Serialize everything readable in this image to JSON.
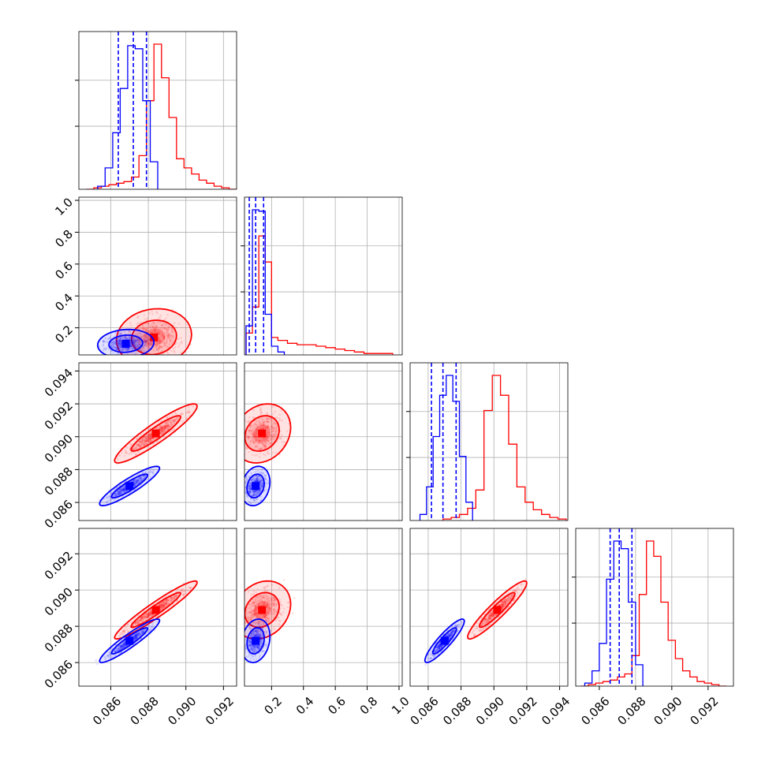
{
  "colors": {
    "blue": "#0000ff",
    "red": "#ff0000",
    "grid": "#b0b0b0",
    "frame": "#000000"
  },
  "chart_data": {
    "type": "corner",
    "grid": true,
    "series": [
      {
        "color": "blue"
      },
      {
        "color": "red"
      }
    ],
    "parameters": [
      {
        "range": [
          0.0843,
          0.0927
        ],
        "tick_values": [
          0.086,
          0.088,
          0.09,
          0.092
        ],
        "tick_labels": [
          "0.086",
          "0.088",
          "0.090",
          "0.092"
        ]
      },
      {
        "range": [
          0.03,
          1.02
        ],
        "tick_values": [
          0.2,
          0.4,
          0.6,
          0.8,
          1.0
        ],
        "tick_labels": [
          "0.2",
          "0.4",
          "0.6",
          "0.8",
          "1.0"
        ]
      },
      {
        "range": [
          0.0849,
          0.0945
        ],
        "tick_values": [
          0.086,
          0.088,
          0.09,
          0.092,
          0.094
        ],
        "tick_labels": [
          "0.086",
          "0.088",
          "0.090",
          "0.092",
          "0.094"
        ]
      },
      {
        "range": [
          0.0847,
          0.0934
        ],
        "tick_values": [
          0.086,
          0.088,
          0.09,
          0.092
        ],
        "tick_labels": [
          "0.086",
          "0.088",
          "0.090",
          "0.092"
        ]
      }
    ],
    "histograms": [
      {
        "param": 0,
        "quantile_lines": [
          0.0864,
          0.0872,
          0.0879
        ],
        "blue": {
          "edges": [
            0.0853,
            0.0857,
            0.0861,
            0.0865,
            0.0869,
            0.0873,
            0.0877,
            0.0881,
            0.0885
          ],
          "counts": [
            2,
            14,
            37,
            66,
            94,
            92,
            58,
            18
          ]
        },
        "red": {
          "edges": [
            0.0847,
            0.0851,
            0.0855,
            0.0859,
            0.0863,
            0.0867,
            0.0871,
            0.0875,
            0.0879,
            0.0883,
            0.0887,
            0.0891,
            0.0895,
            0.0899,
            0.0903,
            0.0907,
            0.0911,
            0.0915,
            0.0919,
            0.0923,
            0.0927
          ],
          "counts": [
            0,
            1,
            2,
            3,
            4,
            5,
            8,
            22,
            58,
            95,
            73,
            47,
            20,
            14,
            10,
            6,
            4,
            2,
            1,
            0
          ]
        }
      },
      {
        "param": 1,
        "quantile_lines": [
          0.06,
          0.1,
          0.15
        ],
        "blue": {
          "edges": [
            0.04,
            0.08,
            0.12,
            0.16,
            0.2,
            0.24,
            0.28
          ],
          "counts": [
            20,
            100,
            99,
            28,
            6,
            2
          ]
        },
        "red": {
          "edges": [
            0.04,
            0.08,
            0.12,
            0.16,
            0.2,
            0.24,
            0.3,
            0.36,
            0.42,
            0.48,
            0.54,
            0.6,
            0.66,
            0.72,
            0.78,
            0.84,
            0.9,
            0.96
          ],
          "counts": [
            15,
            33,
            82,
            64,
            12,
            10,
            8,
            7,
            7,
            6,
            5,
            4,
            3,
            2,
            1,
            1,
            1
          ]
        }
      },
      {
        "param": 2,
        "quantile_lines": [
          0.0862,
          0.0869,
          0.0877
        ],
        "blue": {
          "edges": [
            0.0855,
            0.0859,
            0.0863,
            0.0867,
            0.0871,
            0.0875,
            0.0879,
            0.0883,
            0.0887
          ],
          "counts": [
            4,
            22,
            55,
            82,
            95,
            78,
            42,
            12
          ]
        },
        "red": {
          "edges": [
            0.0869,
            0.0874,
            0.0879,
            0.0884,
            0.0889,
            0.0894,
            0.0899,
            0.0904,
            0.0909,
            0.0914,
            0.0919,
            0.0924,
            0.0929,
            0.0934,
            0.0939,
            0.0944
          ],
          "counts": [
            1,
            2,
            4,
            8,
            20,
            72,
            95,
            82,
            50,
            22,
            12,
            7,
            4,
            2,
            1
          ]
        }
      },
      {
        "param": 3,
        "quantile_lines": [
          0.0866,
          0.0871,
          0.0878
        ],
        "blue": {
          "edges": [
            0.0852,
            0.0856,
            0.086,
            0.0864,
            0.0868,
            0.0872,
            0.0876,
            0.088,
            0.0884
          ],
          "counts": [
            2,
            10,
            28,
            70,
            95,
            90,
            55,
            14
          ]
        },
        "red": {
          "edges": [
            0.085,
            0.0854,
            0.0858,
            0.0862,
            0.0866,
            0.087,
            0.0874,
            0.0878,
            0.0882,
            0.0886,
            0.089,
            0.0894,
            0.0898,
            0.0902,
            0.0906,
            0.091,
            0.0914,
            0.0918,
            0.0922,
            0.0926,
            0.093
          ],
          "counts": [
            0,
            1,
            2,
            3,
            4,
            6,
            8,
            20,
            60,
            95,
            85,
            55,
            30,
            18,
            10,
            6,
            3,
            2,
            1,
            0
          ]
        }
      }
    ],
    "pair_distributions": [
      {
        "x_param": 0,
        "y_param": 1,
        "blue": {
          "center": [
            0.0868,
            0.1
          ],
          "sd": [
            0.00075,
            0.045
          ],
          "corr": 0.1
        },
        "red": {
          "center": [
            0.0883,
            0.14
          ],
          "sd": [
            0.001,
            0.09
          ],
          "corr": 0.1
        }
      },
      {
        "x_param": 0,
        "y_param": 2,
        "blue": {
          "center": [
            0.087,
            0.087
          ],
          "sd": [
            0.0008,
            0.0006
          ],
          "corr": 0.9
        },
        "red": {
          "center": [
            0.0884,
            0.0902
          ],
          "sd": [
            0.0011,
            0.0009
          ],
          "corr": 0.92
        }
      },
      {
        "x_param": 1,
        "y_param": 2,
        "blue": {
          "center": [
            0.1,
            0.087
          ],
          "sd": [
            0.045,
            0.0006
          ],
          "corr": 0.2
        },
        "red": {
          "center": [
            0.14,
            0.0902
          ],
          "sd": [
            0.09,
            0.0009
          ],
          "corr": 0.2
        }
      },
      {
        "x_param": 0,
        "y_param": 3,
        "blue": {
          "center": [
            0.087,
            0.0872
          ],
          "sd": [
            0.0008,
            0.0006
          ],
          "corr": 0.93
        },
        "red": {
          "center": [
            0.0884,
            0.0889
          ],
          "sd": [
            0.0011,
            0.0008
          ],
          "corr": 0.95
        }
      },
      {
        "x_param": 1,
        "y_param": 3,
        "blue": {
          "center": [
            0.1,
            0.0872
          ],
          "sd": [
            0.045,
            0.0006
          ],
          "corr": 0.2
        },
        "red": {
          "center": [
            0.14,
            0.0889
          ],
          "sd": [
            0.09,
            0.0008
          ],
          "corr": 0.2
        }
      },
      {
        "x_param": 2,
        "y_param": 3,
        "blue": {
          "center": [
            0.087,
            0.0872
          ],
          "sd": [
            0.0006,
            0.0006
          ],
          "corr": 0.9
        },
        "red": {
          "center": [
            0.0902,
            0.0889
          ],
          "sd": [
            0.0009,
            0.0008
          ],
          "corr": 0.93
        }
      }
    ]
  }
}
